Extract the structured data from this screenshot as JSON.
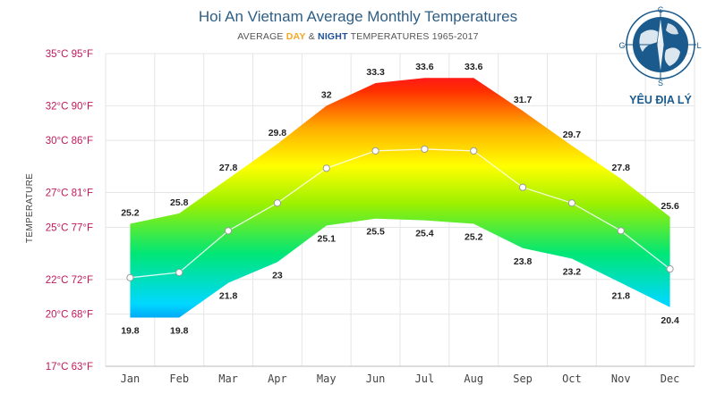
{
  "title": "Hoi An Vietnam Average Monthly Temperatures",
  "subtitle": {
    "prefix": "AVERAGE ",
    "day": "DAY",
    "amp": " & ",
    "night": "NIGHT",
    "suffix": " TEMPERATURES 1965-2017",
    "day_color": "#f5a623",
    "night_color": "#1f4f9a"
  },
  "logo": {
    "text": "YÊU ĐỊA LÝ",
    "icon": "globe-compass-icon"
  },
  "chart_data": {
    "type": "area",
    "title": "Hoi An Vietnam Average Monthly Temperatures",
    "ylabel": "TEMPERATURE",
    "categories": [
      "Jan",
      "Feb",
      "Mar",
      "Apr",
      "May",
      "Jun",
      "Jul",
      "Aug",
      "Sep",
      "Oct",
      "Nov",
      "Dec"
    ],
    "ylim": [
      17,
      35
    ],
    "yticks": [
      {
        "value": 17,
        "label": "17°C 63°F"
      },
      {
        "value": 20,
        "label": "20°C 68°F"
      },
      {
        "value": 22,
        "label": "22°C 72°F"
      },
      {
        "value": 25,
        "label": "25°C 77°F"
      },
      {
        "value": 27,
        "label": "27°C 81°F"
      },
      {
        "value": 30,
        "label": "30°C 86°F"
      },
      {
        "value": 32,
        "label": "32°C 90°F"
      },
      {
        "value": 35,
        "label": "35°C 95°F"
      }
    ],
    "series": [
      {
        "name": "DAY",
        "values": [
          25.2,
          25.8,
          27.8,
          29.8,
          32,
          33.3,
          33.6,
          33.6,
          31.7,
          29.7,
          27.8,
          25.6
        ]
      },
      {
        "name": "NIGHT",
        "values": [
          19.8,
          19.8,
          21.8,
          23,
          25.1,
          25.5,
          25.4,
          25.2,
          23.8,
          23.2,
          21.8,
          20.4
        ]
      }
    ],
    "mean": [
      22.1,
      22.4,
      24.8,
      26.4,
      28.4,
      29.4,
      29.5,
      29.4,
      27.3,
      26.4,
      24.8,
      22.6
    ],
    "grid": true,
    "gradient_colors": [
      "#0033dd",
      "#00d9ff",
      "#00e676",
      "#9cf000",
      "#ffff00",
      "#ffb000",
      "#ff3000",
      "#ff0030"
    ]
  }
}
